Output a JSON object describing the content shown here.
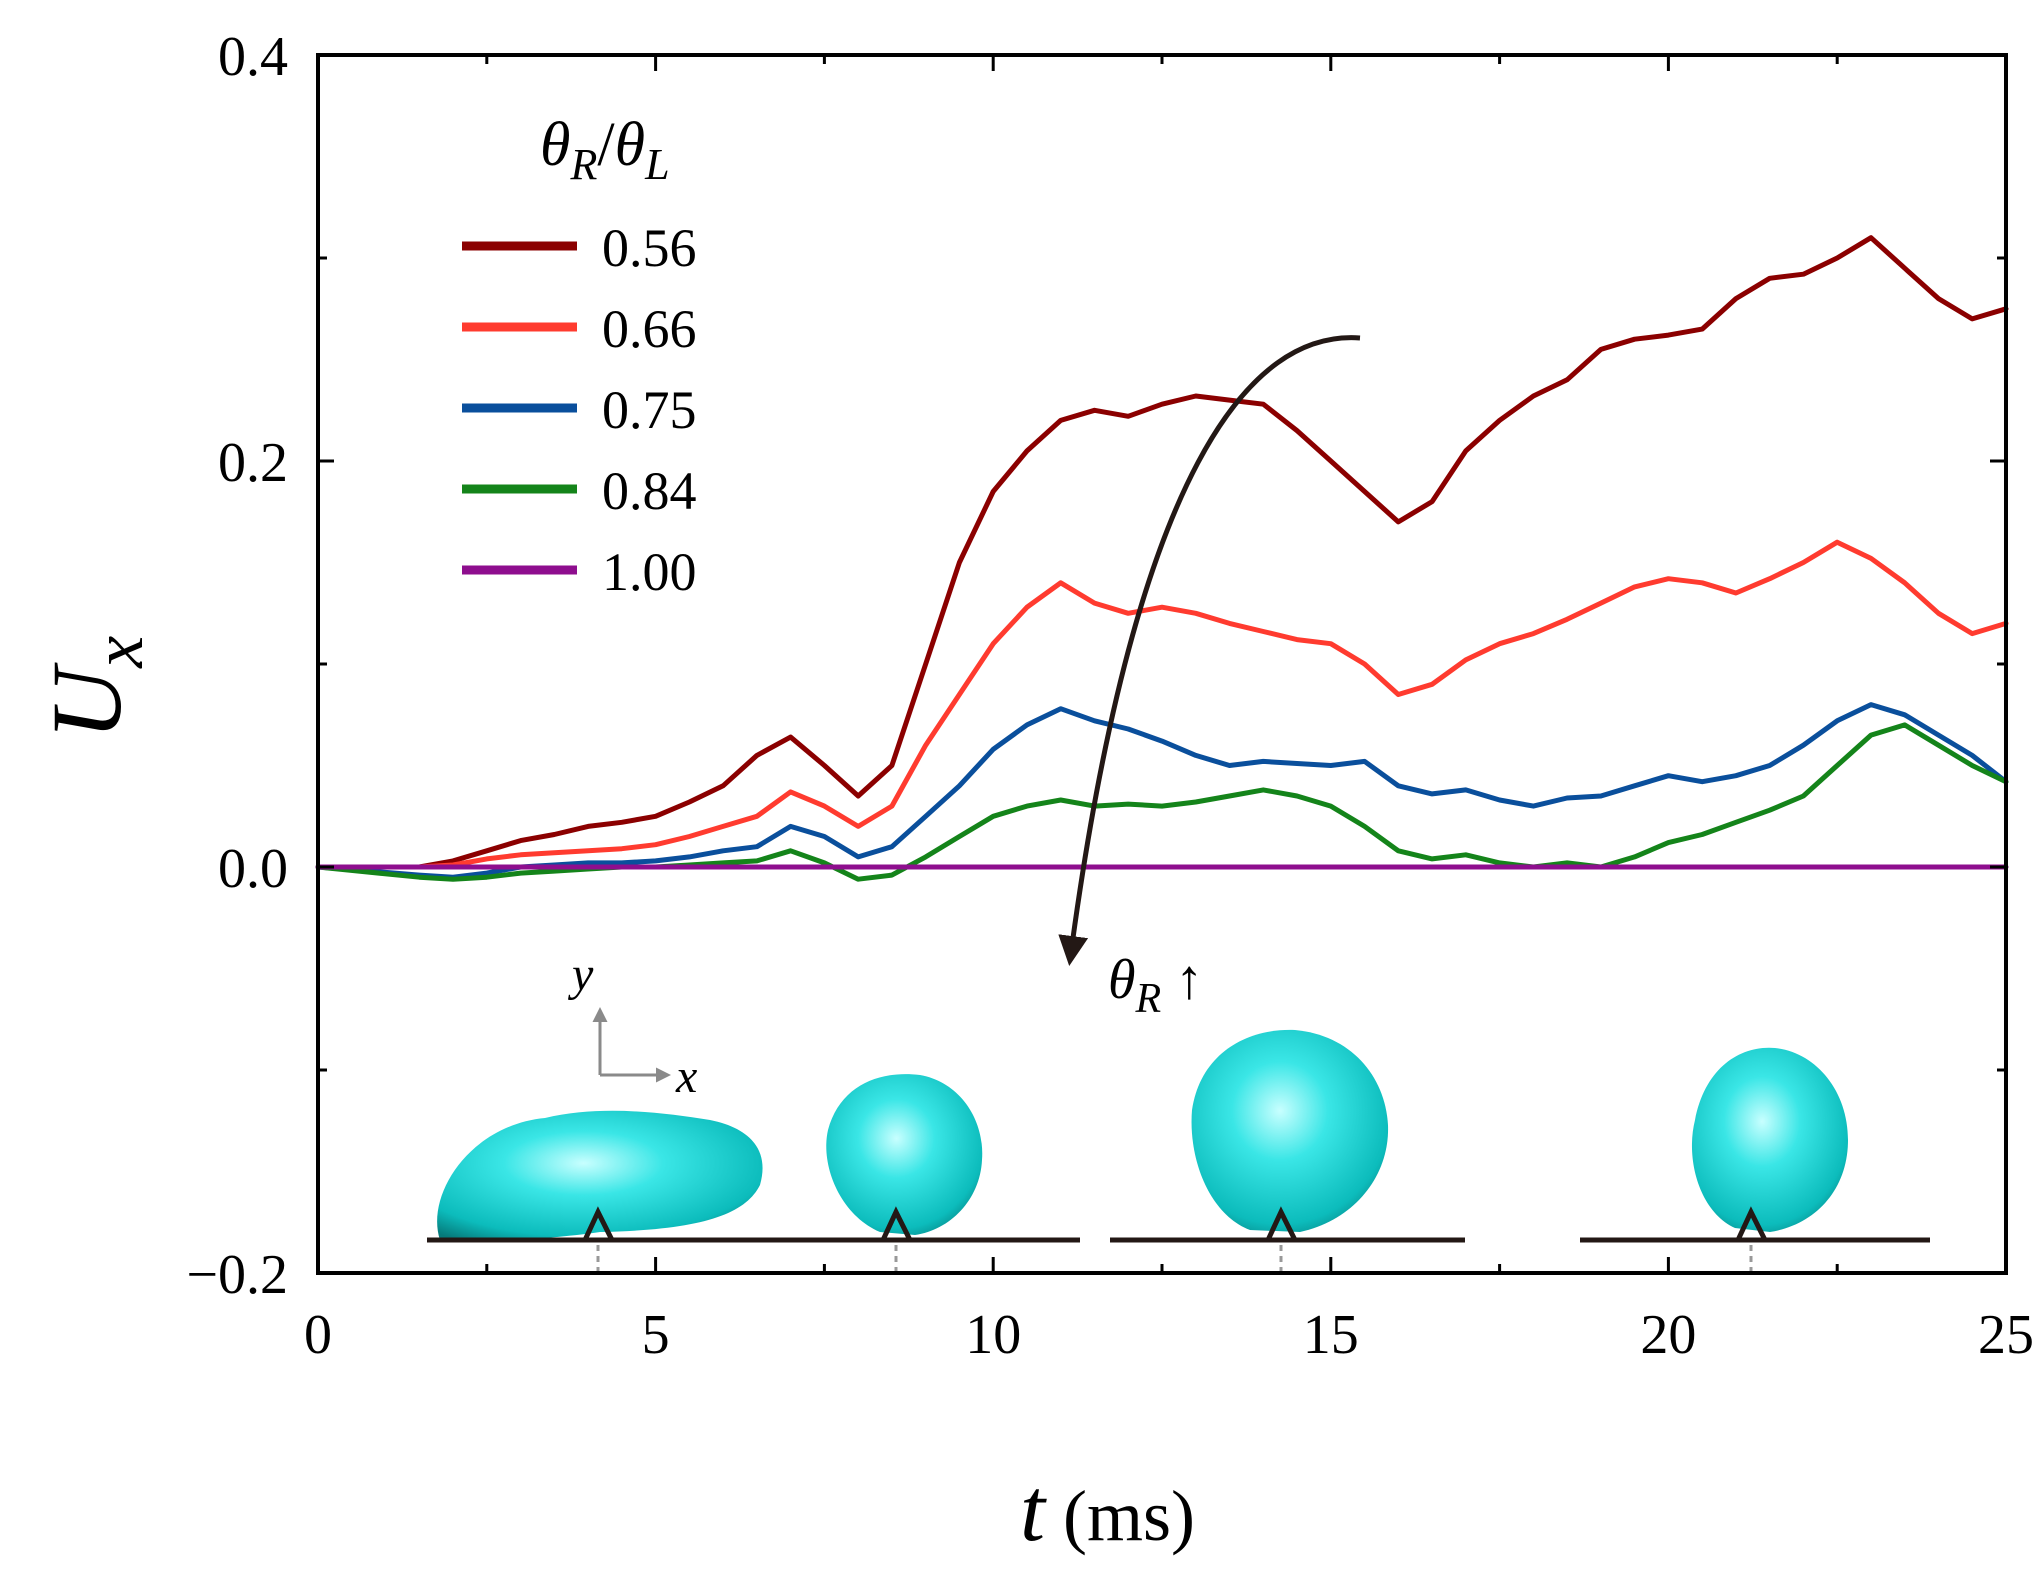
{
  "chart_data": {
    "type": "line",
    "title": "",
    "xlabel": "t (ms)",
    "xlabel_var": "t",
    "xlabel_unit": "(ms)",
    "ylabel": "U_x",
    "ylabel_main": "U",
    "ylabel_sub": "x",
    "xlim": [
      0,
      25
    ],
    "ylim": [
      -0.2,
      0.4
    ],
    "xticks": [
      0,
      5,
      10,
      15,
      20,
      25
    ],
    "xtick_labels": [
      "0",
      "5",
      "10",
      "15",
      "20",
      "25"
    ],
    "yticks": [
      -0.2,
      0.0,
      0.2,
      0.4
    ],
    "ytick_labels": [
      "−0.2",
      "0.0",
      "0.2",
      "0.4"
    ],
    "legend_title": "θR/θL",
    "legend_location": "upper-left",
    "series": [
      {
        "name": "0.56",
        "color": "#8b0000",
        "x": [
          0,
          1.5,
          2,
          2.5,
          3,
          3.5,
          4,
          4.5,
          5,
          5.5,
          6,
          6.5,
          7,
          7.5,
          8,
          8.5,
          9,
          9.5,
          10,
          10.5,
          11,
          11.5,
          12,
          12.5,
          13,
          13.5,
          14,
          14.5,
          15,
          15.5,
          16,
          16.5,
          17,
          17.5,
          18,
          18.5,
          19,
          19.5,
          20,
          20.5,
          21,
          21.5,
          22,
          22.5,
          23,
          23.5,
          24,
          24.5,
          25
        ],
        "y": [
          0,
          0,
          0.003,
          0.008,
          0.013,
          0.016,
          0.02,
          0.022,
          0.025,
          0.032,
          0.04,
          0.055,
          0.064,
          0.05,
          0.035,
          0.05,
          0.1,
          0.15,
          0.185,
          0.205,
          0.22,
          0.225,
          0.222,
          0.228,
          0.232,
          0.23,
          0.228,
          0.215,
          0.2,
          0.185,
          0.17,
          0.18,
          0.205,
          0.22,
          0.232,
          0.24,
          0.255,
          0.26,
          0.262,
          0.265,
          0.28,
          0.29,
          0.292,
          0.3,
          0.31,
          0.295,
          0.28,
          0.27,
          0.275
        ]
      },
      {
        "name": "0.66",
        "color": "#ff3b2f",
        "x": [
          0,
          1.5,
          2,
          2.5,
          3,
          3.5,
          4,
          4.5,
          5,
          5.5,
          6,
          6.5,
          7,
          7.5,
          8,
          8.5,
          9,
          9.5,
          10,
          10.5,
          11,
          11.5,
          12,
          12.5,
          13,
          13.5,
          14,
          14.5,
          15,
          15.5,
          16,
          16.5,
          17,
          17.5,
          18,
          18.5,
          19,
          19.5,
          20,
          20.5,
          21,
          21.5,
          22,
          22.5,
          23,
          23.5,
          24,
          24.5,
          25
        ],
        "y": [
          0,
          0,
          0.001,
          0.004,
          0.006,
          0.007,
          0.008,
          0.009,
          0.011,
          0.015,
          0.02,
          0.025,
          0.037,
          0.03,
          0.02,
          0.03,
          0.06,
          0.085,
          0.11,
          0.128,
          0.14,
          0.13,
          0.125,
          0.128,
          0.125,
          0.12,
          0.116,
          0.112,
          0.11,
          0.1,
          0.085,
          0.09,
          0.102,
          0.11,
          0.115,
          0.122,
          0.13,
          0.138,
          0.142,
          0.14,
          0.135,
          0.142,
          0.15,
          0.16,
          0.152,
          0.14,
          0.125,
          0.115,
          0.12
        ]
      },
      {
        "name": "0.75",
        "color": "#0a4f9c",
        "x": [
          0,
          1.5,
          2,
          2.5,
          3,
          3.5,
          4,
          4.5,
          5,
          5.5,
          6,
          6.5,
          7,
          7.5,
          8,
          8.5,
          9,
          9.5,
          10,
          10.5,
          11,
          11.5,
          12,
          12.5,
          13,
          13.5,
          14,
          14.5,
          15,
          15.5,
          16,
          16.5,
          17,
          17.5,
          18,
          18.5,
          19,
          19.5,
          20,
          20.5,
          21,
          21.5,
          22,
          22.5,
          23,
          23.5,
          24,
          24.5,
          25
        ],
        "y": [
          0,
          -0.004,
          -0.005,
          -0.003,
          0,
          0.001,
          0.002,
          0.002,
          0.003,
          0.005,
          0.008,
          0.01,
          0.02,
          0.015,
          0.005,
          0.01,
          0.025,
          0.04,
          0.058,
          0.07,
          0.078,
          0.072,
          0.068,
          0.062,
          0.055,
          0.05,
          0.052,
          0.051,
          0.05,
          0.052,
          0.04,
          0.036,
          0.038,
          0.033,
          0.03,
          0.034,
          0.035,
          0.04,
          0.045,
          0.042,
          0.045,
          0.05,
          0.06,
          0.072,
          0.08,
          0.075,
          0.065,
          0.055,
          0.042
        ]
      },
      {
        "name": "0.84",
        "color": "#14841a",
        "x": [
          0,
          1.5,
          2,
          2.5,
          3,
          3.5,
          4,
          4.5,
          5,
          5.5,
          6,
          6.5,
          7,
          7.5,
          8,
          8.5,
          9,
          9.5,
          10,
          10.5,
          11,
          11.5,
          12,
          12.5,
          13,
          13.5,
          14,
          14.5,
          15,
          15.5,
          16,
          16.5,
          17,
          17.5,
          18,
          18.5,
          19,
          19.5,
          20,
          20.5,
          21,
          21.5,
          22,
          22.5,
          23,
          23.5,
          24,
          24.5,
          25
        ],
        "y": [
          0,
          -0.005,
          -0.006,
          -0.005,
          -0.003,
          -0.002,
          -0.001,
          0,
          0,
          0.001,
          0.002,
          0.003,
          0.008,
          0.002,
          -0.006,
          -0.004,
          0.005,
          0.015,
          0.025,
          0.03,
          0.033,
          0.03,
          0.031,
          0.03,
          0.032,
          0.035,
          0.038,
          0.035,
          0.03,
          0.02,
          0.008,
          0.004,
          0.006,
          0.002,
          0,
          0.002,
          0,
          0.005,
          0.012,
          0.016,
          0.022,
          0.028,
          0.035,
          0.05,
          0.065,
          0.07,
          0.06,
          0.05,
          0.042
        ]
      },
      {
        "name": "1.00",
        "color": "#8e0e8e",
        "x": [
          0,
          25
        ],
        "y": [
          0,
          0
        ]
      }
    ],
    "annotations": [
      {
        "type": "arrow",
        "text": "θR ↑",
        "text_var": "θ",
        "text_sub": "R",
        "text_suffix": " ↑",
        "meaning": "direction of increasing receding angle"
      },
      {
        "type": "axes-glyph",
        "x_label": "x",
        "y_label": "y"
      },
      {
        "type": "inset-images",
        "description": "droplet snapshots on ridged substrate",
        "count": 4
      }
    ]
  }
}
